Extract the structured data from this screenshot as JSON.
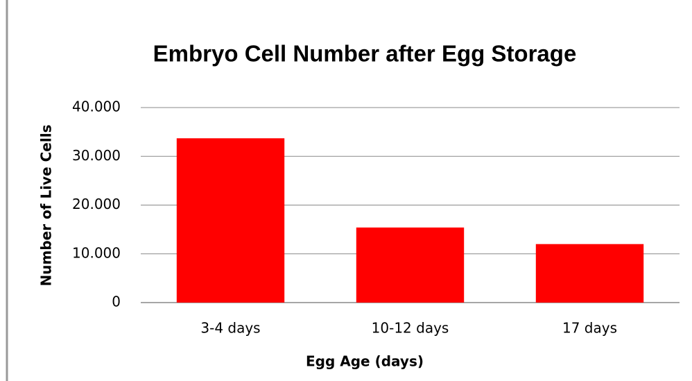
{
  "chart_data": {
    "type": "bar",
    "title": "Embryo Cell Number after Egg Storage",
    "x_label": "Egg Age (days)",
    "y_label": "Number of Live Cells",
    "categories": [
      "3-4 days",
      "10-12 days",
      "17 days"
    ],
    "values": [
      33700,
      15400,
      12000
    ],
    "color": "#ff0000",
    "ylim": [
      0,
      40000
    ],
    "yticks": [
      0,
      {
        "value": 10000,
        "label": "10.000"
      },
      {
        "value": 20000,
        "label": "20.000"
      },
      {
        "value": 30000,
        "label": "30.000"
      },
      {
        "value": 40000,
        "label": "40.000"
      }
    ],
    "grid": true
  }
}
